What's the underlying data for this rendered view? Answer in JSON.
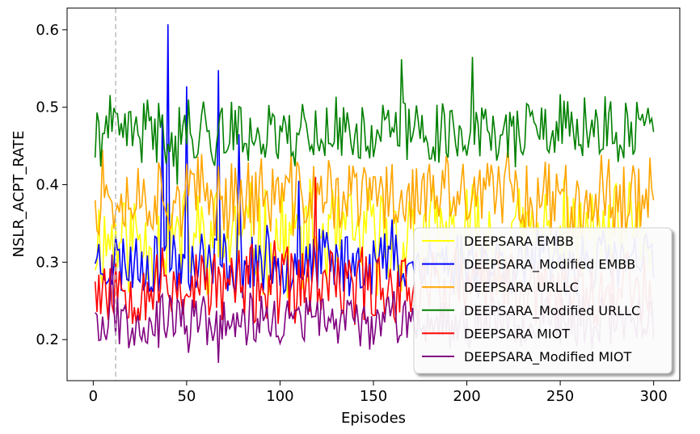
{
  "chart_data": {
    "type": "line",
    "title": "",
    "xlabel": "Episodes",
    "ylabel": "NSLR_ACPT_RATE",
    "xlim": [
      -14,
      314
    ],
    "ylim": [
      0.147,
      0.628
    ],
    "xticks": [
      0,
      50,
      100,
      150,
      200,
      250,
      300
    ],
    "yticks": [
      0.2,
      0.3,
      0.4,
      0.5,
      0.6
    ],
    "xtick_labels": [
      "0",
      "50",
      "100",
      "150",
      "200",
      "250",
      "300"
    ],
    "ytick_labels": [
      "0.2",
      "0.3",
      "0.4",
      "0.5",
      "0.6"
    ],
    "grid": false,
    "legend_position": "lower-right",
    "reference_line": {
      "x": 12,
      "style": "dashed",
      "color": "#bbbbbb"
    },
    "series_styles": [
      {
        "name": "DEEPSARA EMBB",
        "color": "#ffff00",
        "base": 0.33,
        "amp": 0.04,
        "seed": 11,
        "anchors": []
      },
      {
        "name": "DEEPSARA_Modified EMBB",
        "color": "#0000ff",
        "base": 0.3,
        "amp": 0.025,
        "seed": 23,
        "anchors": [
          [
            1,
            0.298
          ],
          [
            40,
            0.607
          ],
          [
            37,
            0.49
          ],
          [
            50,
            0.527
          ],
          [
            67,
            0.548
          ],
          [
            78,
            0.465
          ],
          [
            110,
            0.405
          ],
          [
            160,
            0.355
          ]
        ]
      },
      {
        "name": "DEEPSARA URLLC",
        "color": "#ffa500",
        "base": 0.385,
        "amp": 0.03,
        "seed": 37,
        "anchors": [
          [
            1,
            0.38
          ],
          [
            5,
            0.445
          ],
          [
            300,
            0.38
          ],
          [
            298,
            0.435
          ],
          [
            222,
            0.448
          ]
        ]
      },
      {
        "name": "DEEPSARA_Modified URLLC",
        "color": "#008000",
        "base": 0.468,
        "amp": 0.025,
        "seed": 41,
        "anchors": [
          [
            1,
            0.435
          ],
          [
            45,
            0.4
          ],
          [
            165,
            0.562
          ],
          [
            203,
            0.565
          ],
          [
            300,
            0.468
          ],
          [
            298,
            0.48
          ]
        ]
      },
      {
        "name": "DEEPSARA MIOT",
        "color": "#ff0000",
        "base": 0.27,
        "amp": 0.03,
        "seed": 53,
        "anchors": [
          [
            1,
            0.275
          ],
          [
            119,
            0.41
          ]
        ]
      },
      {
        "name": "DEEPSARA_Modified MIOT",
        "color": "#800080",
        "base": 0.225,
        "amp": 0.02,
        "seed": 67,
        "anchors": [
          [
            1,
            0.235
          ],
          [
            10,
            0.31
          ],
          [
            51,
            0.183
          ],
          [
            67,
            0.17
          ],
          [
            100,
            0.195
          ]
        ]
      }
    ],
    "x": {
      "start": 1,
      "end": 300
    }
  }
}
